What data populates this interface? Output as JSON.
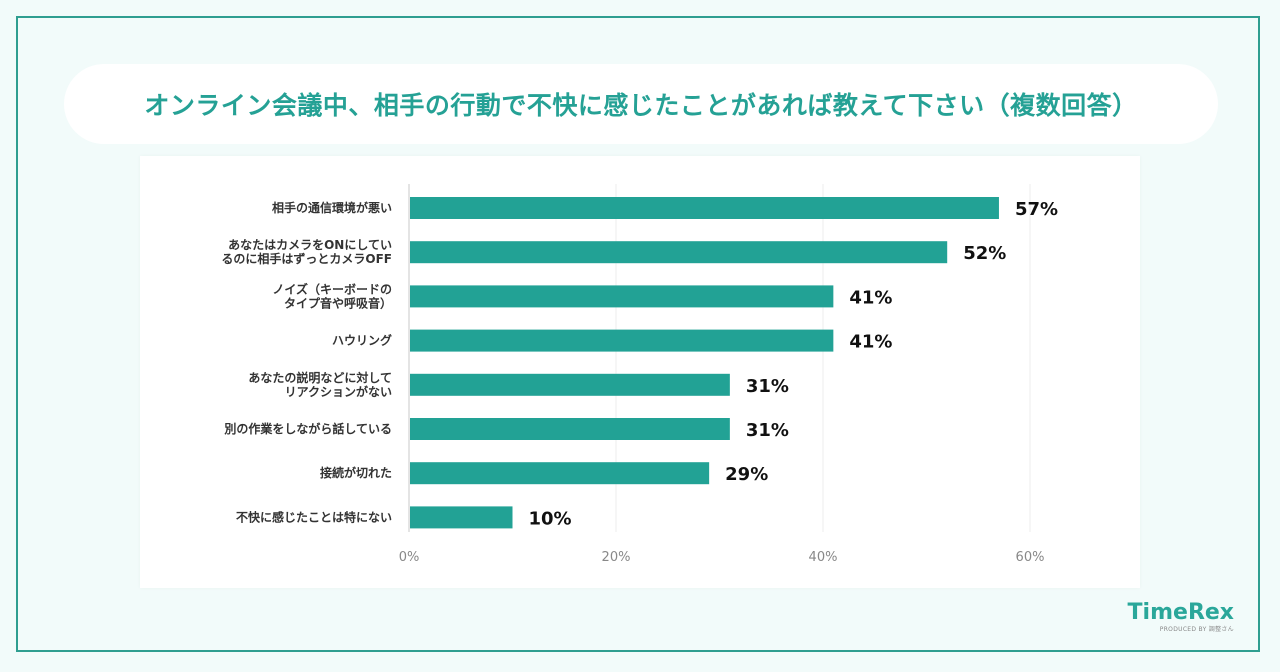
{
  "header": {
    "title": "オンライン会議中、相手の行動で不快に感じたことがあれば教えて下さい（複数回答）"
  },
  "brand": {
    "logo": "TimeRex",
    "tagline": "PRODUCED BY 調整さん"
  },
  "colors": {
    "bar": "#22a295",
    "accent": "#25a195",
    "background": "#f2fbfa"
  },
  "chart_data": {
    "type": "bar",
    "orientation": "horizontal",
    "categories": [
      [
        "相手の通信環境が悪い"
      ],
      [
        "あなたはカメラをONにしてい",
        "るのに相手はずっとカメラOFF"
      ],
      [
        "ノイズ（キーボードの",
        "タイプ音や呼吸音）"
      ],
      [
        "ハウリング"
      ],
      [
        "あなたの説明などに対して",
        "リアクションがない"
      ],
      [
        "別の作業をしながら話している"
      ],
      [
        "接続が切れた"
      ],
      [
        "不快に感じたことは特にない"
      ]
    ],
    "values": [
      57,
      52,
      41,
      41,
      31,
      31,
      29,
      10
    ],
    "value_labels": [
      "57%",
      "52%",
      "41%",
      "41%",
      "31%",
      "31%",
      "29%",
      "10%"
    ],
    "xlim": [
      0,
      60
    ],
    "x_ticks": [
      0,
      20,
      40,
      60
    ],
    "x_tick_labels": [
      "0%",
      "20%",
      "40%",
      "60%"
    ],
    "grid": true
  }
}
